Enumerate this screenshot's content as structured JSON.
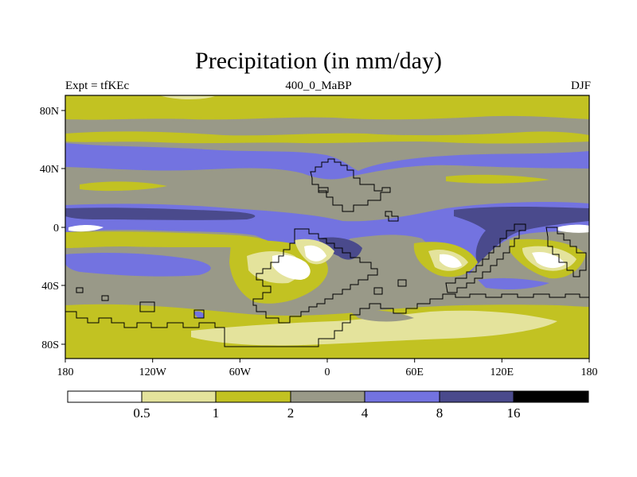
{
  "title": "Precipitation (in mm/day)",
  "subtitle_left": "Expt = tfKEc",
  "subtitle_center": "400_0_MaBP",
  "subtitle_right": "DJF",
  "axes": {
    "x_ticks": [
      "180",
      "120W",
      "60W",
      "0",
      "60E",
      "120E",
      "180"
    ],
    "y_ticks": [
      "80N",
      "40N",
      "0",
      "40S",
      "80S"
    ]
  },
  "colorbar": {
    "labels": [
      "0.5",
      "1",
      "2",
      "4",
      "8",
      "16"
    ],
    "colors": [
      "#ffffff",
      "#e4e39c",
      "#c2c222",
      "#999988",
      "#7373e0",
      "#4a4a8c",
      "#000000"
    ]
  },
  "palette": {
    "olive": "#c2c222",
    "light_olive": "#e4e39c",
    "gray": "#999988",
    "blue": "#7373e0",
    "dark_blue": "#4a4a8c",
    "white": "#ffffff",
    "coast": "#000000"
  }
}
